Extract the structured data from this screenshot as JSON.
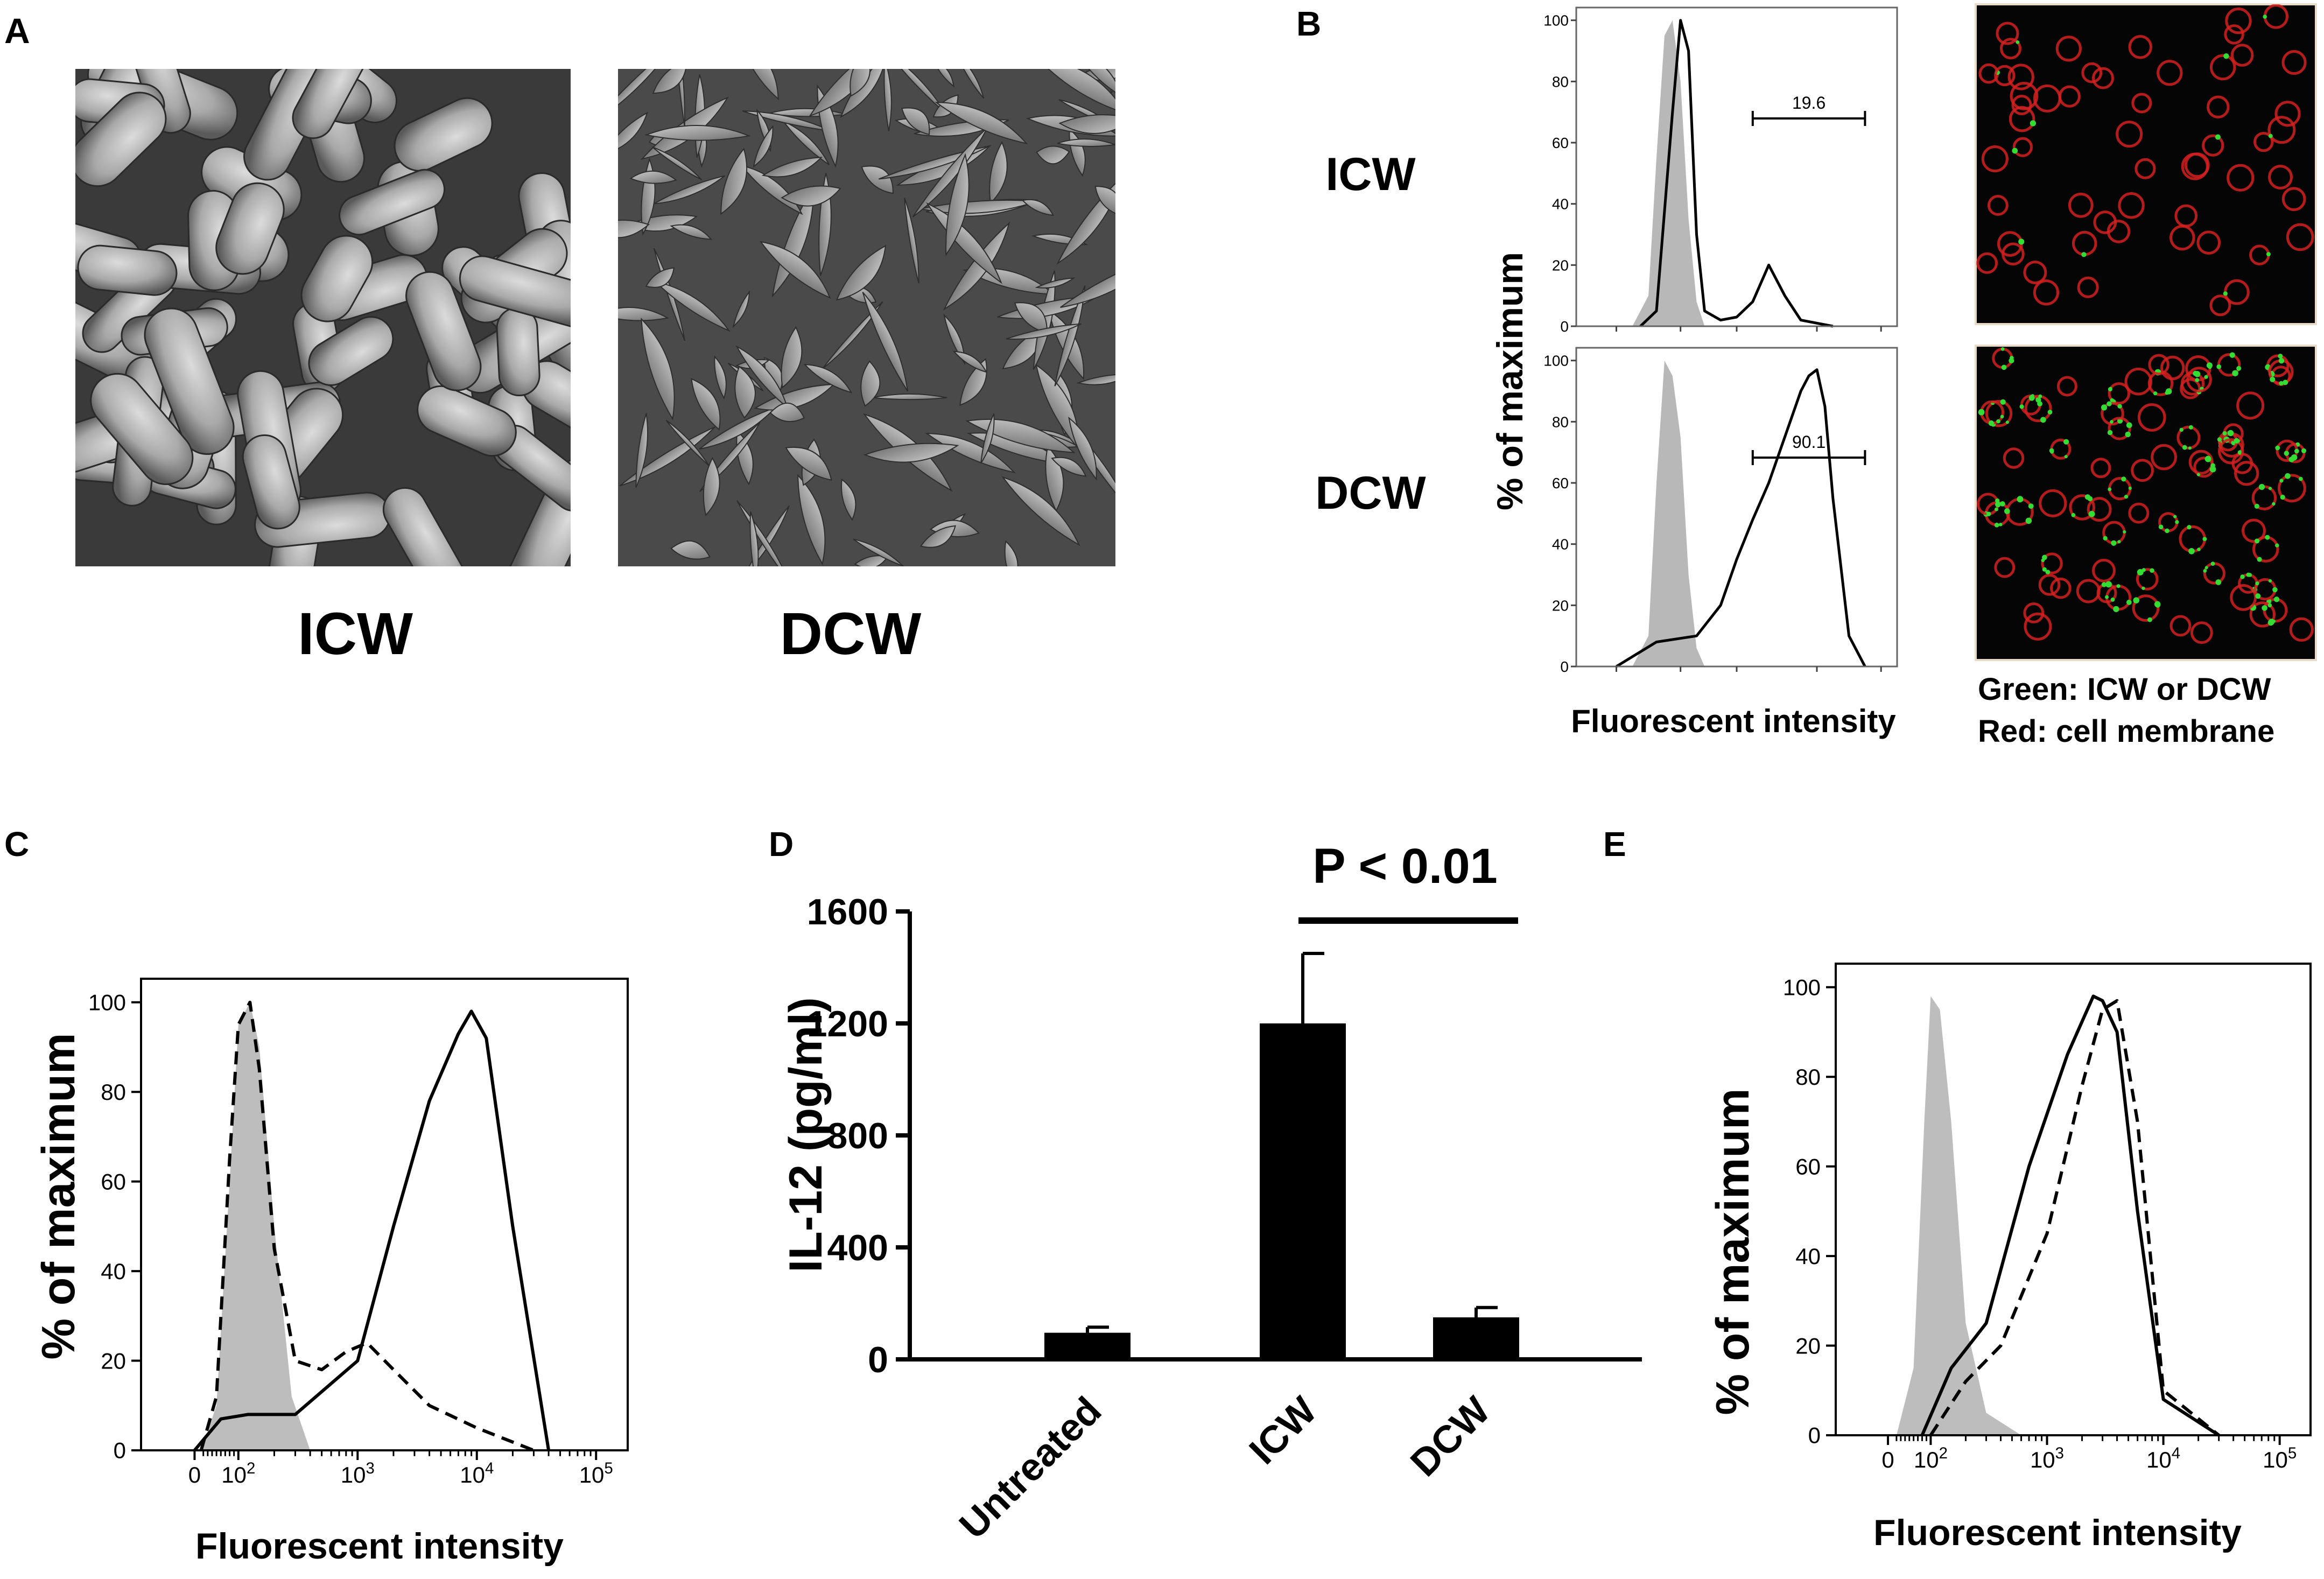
{
  "panels": {
    "A": {
      "letter": "A",
      "images": [
        {
          "caption": "ICW"
        },
        {
          "caption": "DCW"
        }
      ]
    },
    "B": {
      "letter": "B",
      "row_labels": [
        "ICW",
        "DCW"
      ],
      "ylabel": "% of maximum",
      "xlabel": "Fluorescent intensity",
      "ytick_labels": [
        "0",
        "20",
        "40",
        "60",
        "80",
        "100"
      ],
      "gates": [
        "19.6",
        "90.1"
      ],
      "legend_lines": [
        "Green: ICW or DCW",
        "Red: cell membrane"
      ],
      "colors": {
        "membrane": "#d42020",
        "particles": "#33dd33",
        "background": "#050505"
      }
    },
    "C": {
      "letter": "C",
      "ylabel": "% of maximum",
      "xlabel": "Fluorescent intensity",
      "ytick_labels": [
        "0",
        "20",
        "40",
        "60",
        "80",
        "100"
      ],
      "xtick_labels": [
        "0",
        "10",
        "10",
        "10",
        "10"
      ],
      "xtick_exponents": [
        "",
        "2",
        "3",
        "4",
        "5"
      ]
    },
    "D": {
      "letter": "D",
      "significance": "P < 0.01"
    },
    "E": {
      "letter": "E",
      "ylabel": "% of maximum",
      "xlabel": "Fluorescent intensity",
      "ytick_labels": [
        "0",
        "20",
        "40",
        "60",
        "80",
        "100"
      ],
      "xtick_labels": [
        "0",
        "10",
        "10",
        "10",
        "10"
      ],
      "xtick_exponents": [
        "",
        "2",
        "3",
        "4",
        "5"
      ]
    }
  },
  "chart_data": [
    {
      "panel": "B",
      "type": "line",
      "subplots": [
        {
          "name": "ICW",
          "gate_label": "19.6",
          "series": [
            {
              "style": "filled-gray",
              "x": [
                1.7,
                1.9,
                2.0,
                2.1,
                2.2,
                2.3,
                2.4,
                2.5,
                2.6
              ],
              "y": [
                0,
                10,
                55,
                95,
                100,
                80,
                35,
                8,
                0
              ]
            },
            {
              "style": "solid",
              "x": [
                1.8,
                2.0,
                2.2,
                2.3,
                2.4,
                2.5,
                2.6,
                2.8,
                3.0,
                3.2,
                3.4,
                3.6,
                3.8,
                4.2
              ],
              "y": [
                0,
                5,
                70,
                100,
                90,
                30,
                5,
                2,
                3,
                8,
                20,
                10,
                2,
                0
              ]
            }
          ]
        },
        {
          "name": "DCW",
          "gate_label": "90.1",
          "series": [
            {
              "style": "filled-gray",
              "x": [
                1.7,
                1.9,
                2.0,
                2.1,
                2.2,
                2.3,
                2.4,
                2.5,
                2.6
              ],
              "y": [
                0,
                10,
                60,
                100,
                95,
                75,
                30,
                6,
                0
              ]
            },
            {
              "style": "solid",
              "x": [
                1.5,
                2.0,
                2.5,
                2.8,
                3.0,
                3.2,
                3.4,
                3.6,
                3.8,
                3.9,
                4.0,
                4.1,
                4.2,
                4.4,
                4.6
              ],
              "y": [
                0,
                8,
                10,
                20,
                35,
                48,
                60,
                75,
                90,
                95,
                97,
                85,
                55,
                10,
                0
              ]
            }
          ]
        }
      ]
    },
    {
      "panel": "C",
      "type": "line",
      "xscale": "biexponential",
      "xlabel": "Fluorescent intensity",
      "ylabel": "% of maximum",
      "ylim": [
        0,
        100
      ],
      "series": [
        {
          "style": "filled-gray",
          "x": [
            15,
            50,
            80,
            100,
            125,
            150,
            200,
            280,
            400
          ],
          "y": [
            0,
            10,
            60,
            95,
            100,
            90,
            50,
            12,
            0
          ]
        },
        {
          "style": "dashed",
          "x": [
            15,
            50,
            80,
            100,
            125,
            150,
            200,
            300,
            500,
            800,
            1200,
            2000,
            4000,
            10000,
            30000
          ],
          "y": [
            0,
            12,
            65,
            95,
            100,
            85,
            45,
            20,
            18,
            22,
            24,
            18,
            10,
            5,
            0
          ]
        },
        {
          "style": "solid",
          "x": [
            0,
            60,
            120,
            300,
            1000,
            2000,
            4000,
            7000,
            9000,
            12000,
            20000,
            40000
          ],
          "y": [
            0,
            7,
            8,
            8,
            20,
            50,
            78,
            93,
            98,
            92,
            50,
            0
          ]
        }
      ]
    },
    {
      "panel": "D",
      "type": "bar",
      "categories": [
        "Untreated",
        "ICW",
        "DCW"
      ],
      "values": [
        95,
        1200,
        150
      ],
      "errors": [
        20,
        250,
        35
      ],
      "ylabel": "IL-12 (pg/ml)",
      "ylim": [
        0,
        1600
      ],
      "yticks": [
        0,
        400,
        800,
        1200,
        1600
      ],
      "annotation": "P < 0.01"
    },
    {
      "panel": "E",
      "type": "line",
      "xscale": "biexponential",
      "xlabel": "Fluorescent intensity",
      "ylabel": "% of maximum",
      "ylim": [
        0,
        100
      ],
      "series": [
        {
          "style": "filled-gray",
          "x": [
            20,
            60,
            85,
            100,
            120,
            150,
            200,
            300,
            600
          ],
          "y": [
            0,
            15,
            70,
            98,
            95,
            70,
            25,
            5,
            0
          ]
        },
        {
          "style": "solid",
          "x": [
            80,
            150,
            300,
            700,
            1500,
            2500,
            3000,
            4000,
            6000,
            10000,
            30000
          ],
          "y": [
            0,
            15,
            25,
            60,
            85,
            98,
            97,
            90,
            50,
            8,
            0
          ]
        },
        {
          "style": "dashed",
          "x": [
            100,
            200,
            400,
            1000,
            2000,
            3000,
            4000,
            6000,
            10000,
            30000
          ],
          "y": [
            0,
            12,
            20,
            45,
            78,
            95,
            97,
            70,
            10,
            0
          ]
        }
      ]
    }
  ]
}
